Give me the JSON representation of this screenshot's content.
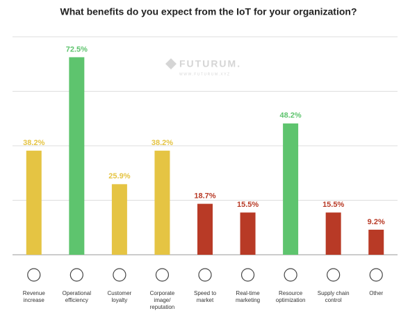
{
  "chart_data": {
    "type": "bar",
    "title": "What benefits do you expect from the IoT for your organization?",
    "watermark": "FUTURUM.",
    "watermark_url": "WWW.FUTURUM.XYZ",
    "categories": [
      "Revenue increase",
      "Operational efficiency",
      "Customer loyalty",
      "Corporate image/ reputation",
      "Speed to market",
      "Real-time marketing",
      "Resource optimization",
      "Supply chain control",
      "Other"
    ],
    "values": [
      38.2,
      72.5,
      25.9,
      38.2,
      18.7,
      15.5,
      48.2,
      15.5,
      9.2
    ],
    "value_labels": [
      "38.2%",
      "72.5%",
      "25.9%",
      "38.2%",
      "18.7%",
      "15.5%",
      "48.2%",
      "15.5%",
      "9.2%"
    ],
    "colors": [
      "#e5c443",
      "#5ec46e",
      "#e5c443",
      "#e5c443",
      "#b83a26",
      "#b83a26",
      "#5ec46e",
      "#b83a26",
      "#b83a26"
    ],
    "ylim": [
      0,
      80
    ],
    "yticks": [
      0,
      20,
      40,
      60,
      80
    ],
    "grid": true
  }
}
